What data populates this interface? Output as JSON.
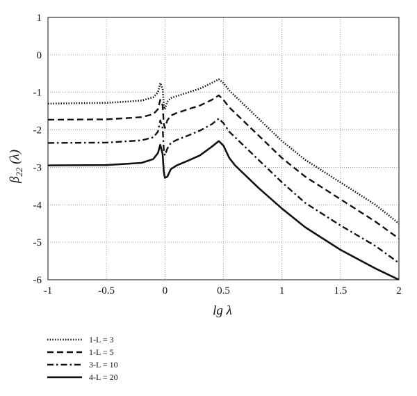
{
  "chart_data": {
    "type": "line",
    "xlabel": "lg λ",
    "ylabel": "β22 (λ)",
    "ylabel_main": "β",
    "ylabel_sub": "22",
    "ylabel_rest": " (λ)",
    "xlim": [
      -1,
      2
    ],
    "ylim": [
      -6,
      1
    ],
    "grid": true,
    "legend_position": "bottom-left",
    "xticks": [
      "-1",
      "-0.5",
      "0",
      "0.5",
      "1",
      "1.5",
      "2"
    ],
    "yticks": [
      "1",
      "0",
      "-1",
      "-2",
      "-3",
      "-4",
      "-5",
      "-6"
    ],
    "series": [
      {
        "name": "1-L = 3",
        "style": "dotted",
        "x": [
          -1,
          -0.5,
          -0.2,
          -0.1,
          -0.06,
          -0.04,
          -0.02,
          -0.01,
          0.0,
          0.02,
          0.05,
          0.1,
          0.2,
          0.3,
          0.4,
          0.46,
          0.5,
          0.55,
          0.6,
          0.7,
          0.8,
          1.0,
          1.2,
          1.5,
          1.8,
          2.0
        ],
        "y": [
          -1.3,
          -1.28,
          -1.22,
          -1.13,
          -1.0,
          -0.75,
          -0.9,
          -1.35,
          -1.45,
          -1.25,
          -1.15,
          -1.1,
          -1.0,
          -0.9,
          -0.75,
          -0.65,
          -0.75,
          -0.95,
          -1.1,
          -1.4,
          -1.7,
          -2.3,
          -2.8,
          -3.4,
          -4.0,
          -4.5
        ]
      },
      {
        "name": "1-L = 5",
        "style": "dashed",
        "x": [
          -1,
          -0.5,
          -0.2,
          -0.1,
          -0.06,
          -0.04,
          -0.02,
          -0.01,
          0.0,
          0.02,
          0.05,
          0.1,
          0.2,
          0.3,
          0.4,
          0.46,
          0.5,
          0.55,
          0.6,
          0.7,
          0.8,
          1.0,
          1.2,
          1.5,
          1.8,
          2.0
        ],
        "y": [
          -1.73,
          -1.72,
          -1.66,
          -1.58,
          -1.45,
          -1.2,
          -1.35,
          -1.85,
          -1.95,
          -1.75,
          -1.62,
          -1.55,
          -1.45,
          -1.35,
          -1.2,
          -1.08,
          -1.2,
          -1.4,
          -1.55,
          -1.85,
          -2.15,
          -2.75,
          -3.25,
          -3.85,
          -4.45,
          -4.9
        ]
      },
      {
        "name": "3-L = 10",
        "style": "dashdot",
        "x": [
          -1,
          -0.5,
          -0.2,
          -0.1,
          -0.06,
          -0.04,
          -0.02,
          -0.01,
          0.0,
          0.02,
          0.05,
          0.1,
          0.2,
          0.3,
          0.4,
          0.46,
          0.5,
          0.55,
          0.6,
          0.7,
          0.8,
          1.0,
          1.2,
          1.5,
          1.8,
          2.0
        ],
        "y": [
          -2.35,
          -2.34,
          -2.28,
          -2.2,
          -2.05,
          -1.75,
          -1.95,
          -2.55,
          -2.68,
          -2.5,
          -2.35,
          -2.27,
          -2.15,
          -2.02,
          -1.85,
          -1.7,
          -1.82,
          -2.05,
          -2.2,
          -2.5,
          -2.8,
          -3.4,
          -3.95,
          -4.55,
          -5.1,
          -5.55
        ]
      },
      {
        "name": "4-L = 20",
        "style": "solid",
        "x": [
          -1,
          -0.5,
          -0.2,
          -0.1,
          -0.06,
          -0.04,
          -0.02,
          -0.01,
          0.0,
          0.02,
          0.05,
          0.1,
          0.2,
          0.3,
          0.4,
          0.46,
          0.5,
          0.55,
          0.6,
          0.7,
          0.8,
          1.0,
          1.2,
          1.5,
          1.8,
          2.0
        ],
        "y": [
          -2.95,
          -2.94,
          -2.88,
          -2.78,
          -2.62,
          -2.4,
          -2.65,
          -3.12,
          -3.28,
          -3.25,
          -3.05,
          -2.95,
          -2.82,
          -2.68,
          -2.45,
          -2.3,
          -2.42,
          -2.75,
          -2.95,
          -3.25,
          -3.55,
          -4.1,
          -4.6,
          -5.2,
          -5.7,
          -6.0
        ]
      }
    ]
  }
}
